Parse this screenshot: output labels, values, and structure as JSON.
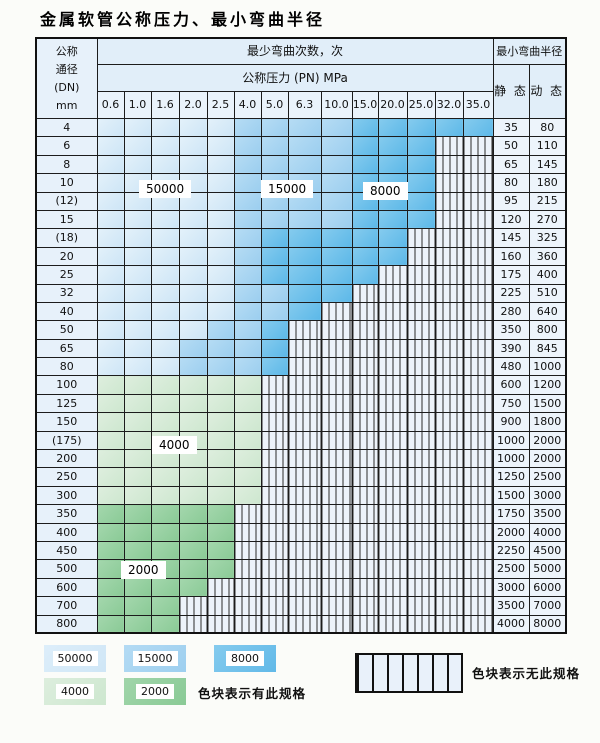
{
  "page_title": "金属软管公称压力、最小弯曲半径",
  "table": {
    "header": {
      "dn_lines": [
        "公称",
        "通径",
        "(DN)",
        "mm"
      ],
      "cycles_title": "最少弯曲次数，次",
      "pressure_title": "公称压力 (PN) MPa",
      "pressure_columns": [
        "0.6",
        "1.0",
        "1.6",
        "2.0",
        "2.5",
        "4.0",
        "5.0",
        "6.3",
        "10.0",
        "15.0",
        "20.0",
        "25.0",
        "32.0",
        "35.0"
      ],
      "radius_title": "最小弯曲半径",
      "static_label": "静 态",
      "dynamic_label": "动 态"
    },
    "zone_legend_note": "cells: A=50000次, B=15000次, C=8000次, D=4000次, E=2000次, X=无此规格(hatched)",
    "rows": [
      {
        "dn": "4",
        "cells": [
          "A",
          "A",
          "A",
          "A",
          "A",
          "B",
          "B",
          "B",
          "B",
          "C",
          "C",
          "C",
          "C",
          "C"
        ],
        "static": "35",
        "dynamic": "80"
      },
      {
        "dn": "6",
        "cells": [
          "A",
          "A",
          "A",
          "A",
          "A",
          "B",
          "B",
          "B",
          "B",
          "C",
          "C",
          "C",
          "X",
          "X"
        ],
        "static": "50",
        "dynamic": "110"
      },
      {
        "dn": "8",
        "cells": [
          "A",
          "A",
          "A",
          "A",
          "A",
          "B",
          "B",
          "B",
          "B",
          "C",
          "C",
          "C",
          "X",
          "X"
        ],
        "static": "65",
        "dynamic": "145"
      },
      {
        "dn": "10",
        "cells": [
          "A",
          "A",
          "A",
          "A",
          "A",
          "B",
          "B",
          "B",
          "B",
          "C",
          "C",
          "C",
          "X",
          "X"
        ],
        "static": "80",
        "dynamic": "180"
      },
      {
        "dn": "(12)",
        "cells": [
          "A",
          "A",
          "A",
          "A",
          "A",
          "B",
          "B",
          "B",
          "B",
          "C",
          "C",
          "C",
          "X",
          "X"
        ],
        "static": "95",
        "dynamic": "215"
      },
      {
        "dn": "15",
        "cells": [
          "A",
          "A",
          "A",
          "A",
          "A",
          "B",
          "B",
          "B",
          "B",
          "C",
          "C",
          "C",
          "X",
          "X"
        ],
        "static": "120",
        "dynamic": "270"
      },
      {
        "dn": "(18)",
        "cells": [
          "A",
          "A",
          "A",
          "A",
          "A",
          "B",
          "C",
          "C",
          "C",
          "C",
          "C",
          "X",
          "X",
          "X"
        ],
        "static": "145",
        "dynamic": "325"
      },
      {
        "dn": "20",
        "cells": [
          "A",
          "A",
          "A",
          "A",
          "A",
          "B",
          "C",
          "C",
          "C",
          "C",
          "C",
          "X",
          "X",
          "X"
        ],
        "static": "160",
        "dynamic": "360"
      },
      {
        "dn": "25",
        "cells": [
          "A",
          "A",
          "A",
          "A",
          "A",
          "B",
          "C",
          "C",
          "C",
          "C",
          "X",
          "X",
          "X",
          "X"
        ],
        "static": "175",
        "dynamic": "400"
      },
      {
        "dn": "32",
        "cells": [
          "A",
          "A",
          "A",
          "A",
          "A",
          "B",
          "B",
          "C",
          "C",
          "X",
          "X",
          "X",
          "X",
          "X"
        ],
        "static": "225",
        "dynamic": "510"
      },
      {
        "dn": "40",
        "cells": [
          "A",
          "A",
          "A",
          "A",
          "A",
          "B",
          "B",
          "C",
          "X",
          "X",
          "X",
          "X",
          "X",
          "X"
        ],
        "static": "280",
        "dynamic": "640"
      },
      {
        "dn": "50",
        "cells": [
          "A",
          "A",
          "A",
          "A",
          "B",
          "B",
          "C",
          "X",
          "X",
          "X",
          "X",
          "X",
          "X",
          "X"
        ],
        "static": "350",
        "dynamic": "800"
      },
      {
        "dn": "65",
        "cells": [
          "A",
          "A",
          "A",
          "B",
          "B",
          "B",
          "C",
          "X",
          "X",
          "X",
          "X",
          "X",
          "X",
          "X"
        ],
        "static": "390",
        "dynamic": "845"
      },
      {
        "dn": "80",
        "cells": [
          "A",
          "A",
          "A",
          "B",
          "B",
          "B",
          "C",
          "X",
          "X",
          "X",
          "X",
          "X",
          "X",
          "X"
        ],
        "static": "480",
        "dynamic": "1000"
      },
      {
        "dn": "100",
        "cells": [
          "D",
          "D",
          "D",
          "D",
          "D",
          "D",
          "X",
          "X",
          "X",
          "X",
          "X",
          "X",
          "X",
          "X"
        ],
        "static": "600",
        "dynamic": "1200"
      },
      {
        "dn": "125",
        "cells": [
          "D",
          "D",
          "D",
          "D",
          "D",
          "D",
          "X",
          "X",
          "X",
          "X",
          "X",
          "X",
          "X",
          "X"
        ],
        "static": "750",
        "dynamic": "1500"
      },
      {
        "dn": "150",
        "cells": [
          "D",
          "D",
          "D",
          "D",
          "D",
          "D",
          "X",
          "X",
          "X",
          "X",
          "X",
          "X",
          "X",
          "X"
        ],
        "static": "900",
        "dynamic": "1800"
      },
      {
        "dn": "(175)",
        "cells": [
          "D",
          "D",
          "D",
          "D",
          "D",
          "D",
          "X",
          "X",
          "X",
          "X",
          "X",
          "X",
          "X",
          "X"
        ],
        "static": "1000",
        "dynamic": "2000"
      },
      {
        "dn": "200",
        "cells": [
          "D",
          "D",
          "D",
          "D",
          "D",
          "D",
          "X",
          "X",
          "X",
          "X",
          "X",
          "X",
          "X",
          "X"
        ],
        "static": "1000",
        "dynamic": "2000"
      },
      {
        "dn": "250",
        "cells": [
          "D",
          "D",
          "D",
          "D",
          "D",
          "D",
          "X",
          "X",
          "X",
          "X",
          "X",
          "X",
          "X",
          "X"
        ],
        "static": "1250",
        "dynamic": "2500"
      },
      {
        "dn": "300",
        "cells": [
          "D",
          "D",
          "D",
          "D",
          "D",
          "D",
          "X",
          "X",
          "X",
          "X",
          "X",
          "X",
          "X",
          "X"
        ],
        "static": "1500",
        "dynamic": "3000"
      },
      {
        "dn": "350",
        "cells": [
          "E",
          "E",
          "E",
          "E",
          "E",
          "X",
          "X",
          "X",
          "X",
          "X",
          "X",
          "X",
          "X",
          "X"
        ],
        "static": "1750",
        "dynamic": "3500"
      },
      {
        "dn": "400",
        "cells": [
          "E",
          "E",
          "E",
          "E",
          "E",
          "X",
          "X",
          "X",
          "X",
          "X",
          "X",
          "X",
          "X",
          "X"
        ],
        "static": "2000",
        "dynamic": "4000"
      },
      {
        "dn": "450",
        "cells": [
          "E",
          "E",
          "E",
          "E",
          "E",
          "X",
          "X",
          "X",
          "X",
          "X",
          "X",
          "X",
          "X",
          "X"
        ],
        "static": "2250",
        "dynamic": "4500"
      },
      {
        "dn": "500",
        "cells": [
          "E",
          "E",
          "E",
          "E",
          "E",
          "X",
          "X",
          "X",
          "X",
          "X",
          "X",
          "X",
          "X",
          "X"
        ],
        "static": "2500",
        "dynamic": "5000"
      },
      {
        "dn": "600",
        "cells": [
          "E",
          "E",
          "E",
          "E",
          "X",
          "X",
          "X",
          "X",
          "X",
          "X",
          "X",
          "X",
          "X",
          "X"
        ],
        "static": "3000",
        "dynamic": "6000"
      },
      {
        "dn": "700",
        "cells": [
          "E",
          "E",
          "E",
          "X",
          "X",
          "X",
          "X",
          "X",
          "X",
          "X",
          "X",
          "X",
          "X",
          "X"
        ],
        "static": "3500",
        "dynamic": "7000"
      },
      {
        "dn": "800",
        "cells": [
          "E",
          "E",
          "E",
          "X",
          "X",
          "X",
          "X",
          "X",
          "X",
          "X",
          "X",
          "X",
          "X",
          "X"
        ],
        "static": "4000",
        "dynamic": "8000"
      }
    ]
  },
  "overlay_labels": {
    "l50000": "50000",
    "l15000": "15000",
    "l8000": "8000",
    "l4000": "4000",
    "l2000": "2000"
  },
  "legend": {
    "items": [
      {
        "value": "50000",
        "zone": "A"
      },
      {
        "value": "15000",
        "zone": "B"
      },
      {
        "value": "8000",
        "zone": "C"
      },
      {
        "value": "4000",
        "zone": "D"
      },
      {
        "value": "2000",
        "zone": "E"
      }
    ],
    "have_text": "色块表示有此规格",
    "none_text": "色块表示无此规格"
  },
  "colors": {
    "zone_50000": "#d7eaf8",
    "zone_15000": "#a9d5f1",
    "zone_8000": "#74c2ec",
    "zone_4000": "#d6ebd7",
    "zone_2000": "#98d1a2",
    "hatch_bg": "#edf3fa",
    "grid_line": "#1c1c1c",
    "header_bg": "#e1eef9"
  }
}
